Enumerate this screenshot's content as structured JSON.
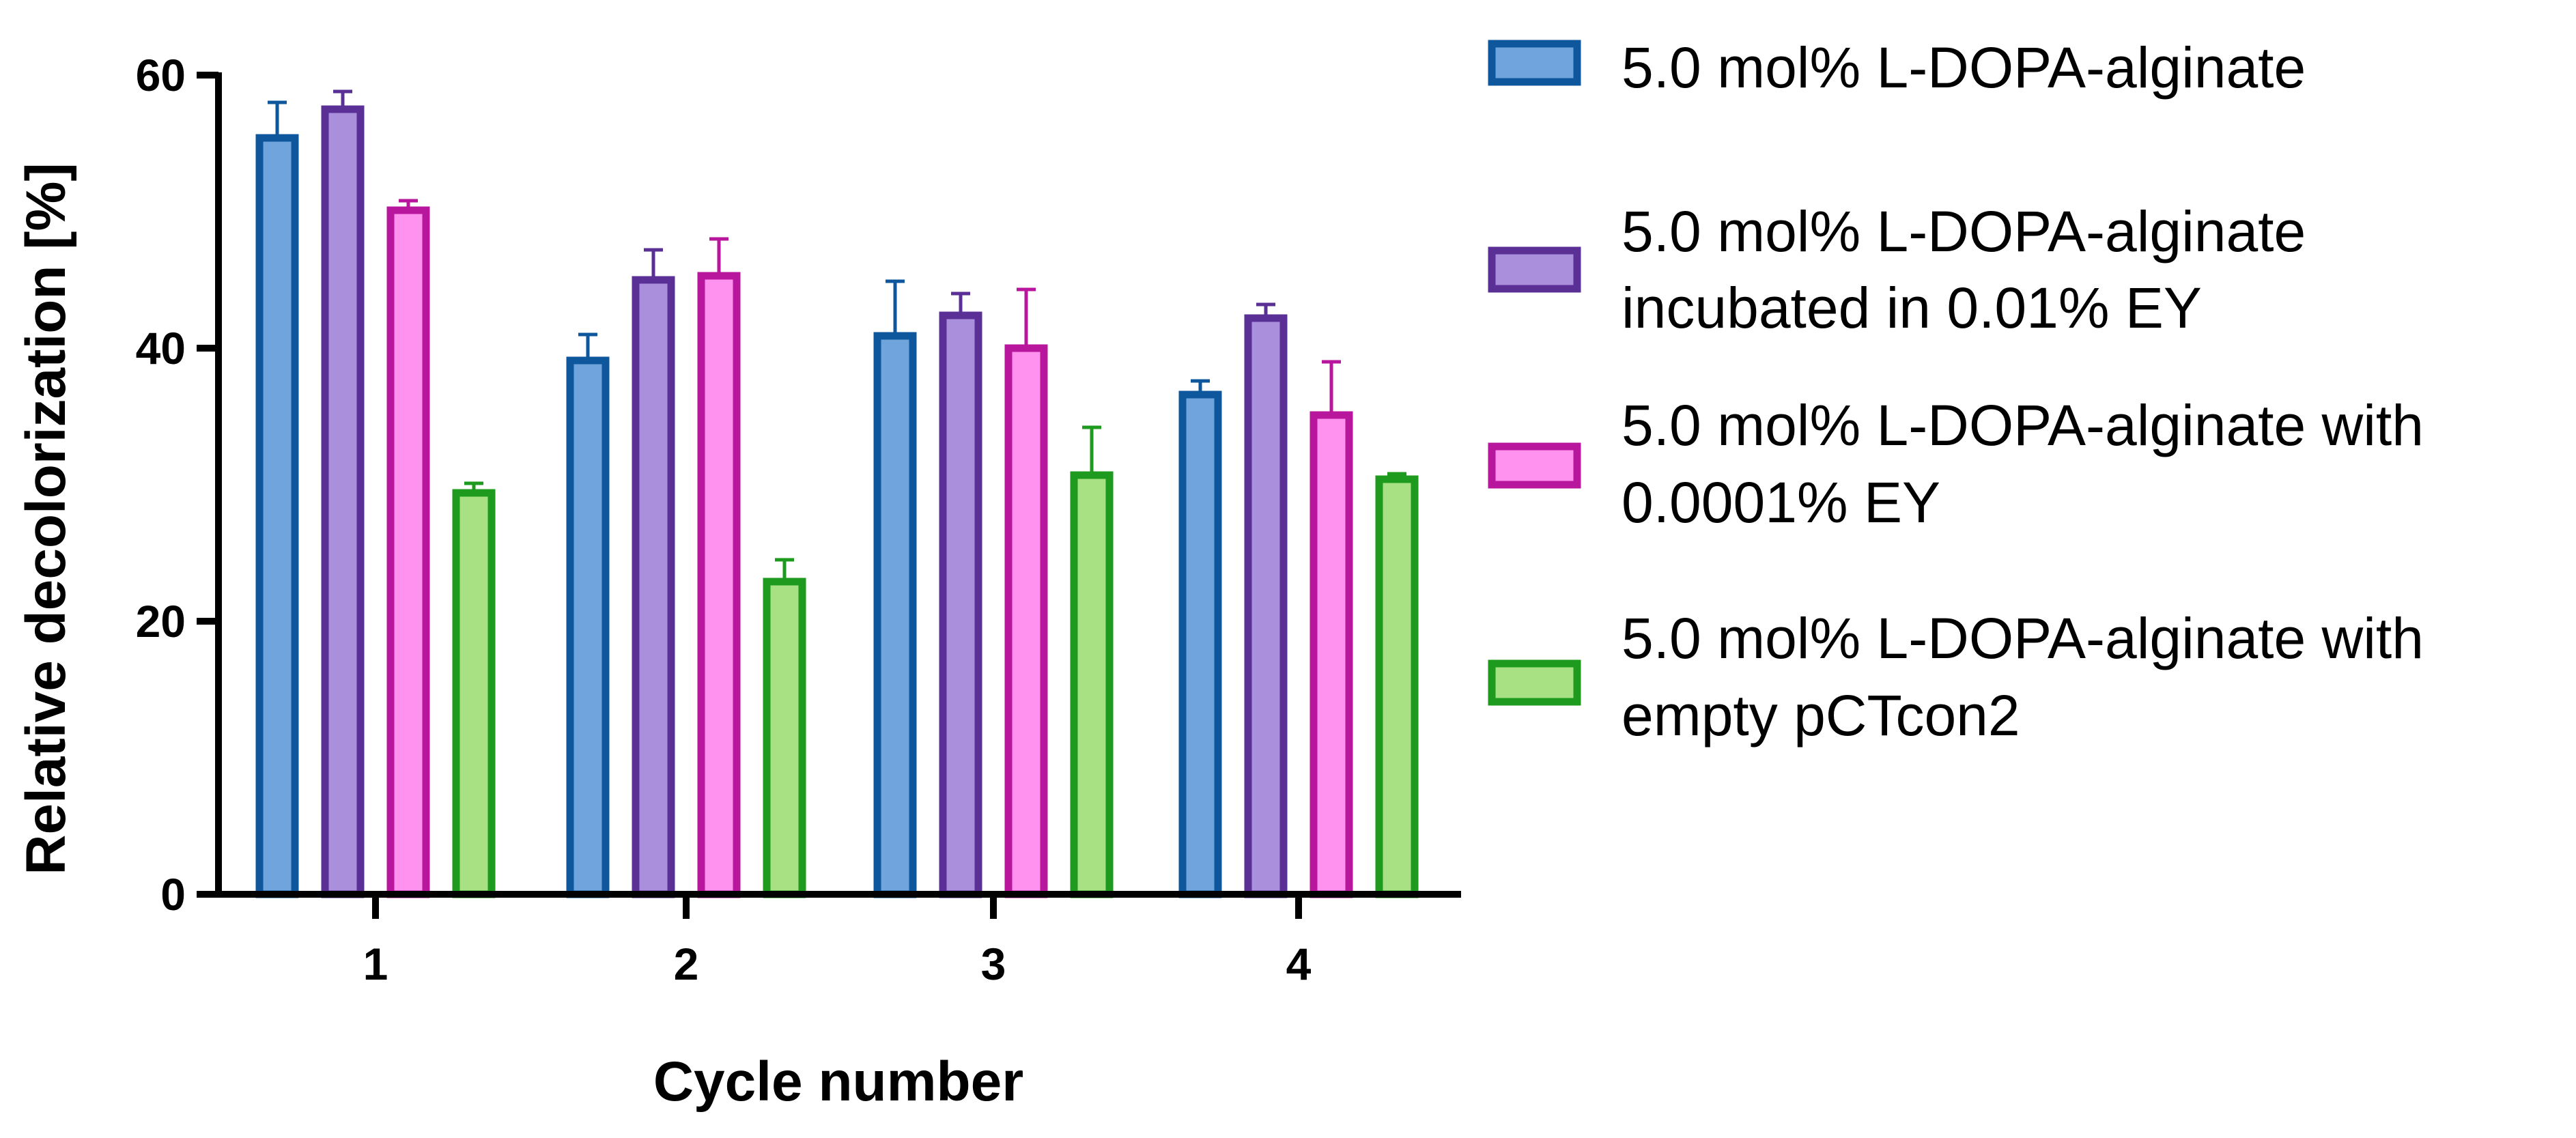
{
  "chart_data": {
    "type": "bar",
    "title": "",
    "xlabel": "Cycle number",
    "ylabel": "Relative decolorization [%]",
    "ylim": [
      0,
      60
    ],
    "yticks": [
      0,
      20,
      40,
      60
    ],
    "categories": [
      "1",
      "2",
      "3",
      "4"
    ],
    "legend_position": "right",
    "series": [
      {
        "name": "5.0 mol% L-DOPA-alginate",
        "label_lines": [
          "5.0 mol% L-DOPA-alginate"
        ],
        "fill": "#6fa4dc",
        "stroke": "#0f579d",
        "values": [
          55.4,
          39.1,
          40.9,
          36.6
        ],
        "errors": [
          2.6,
          1.9,
          4.0,
          1.0
        ]
      },
      {
        "name": "5.0 mol% L-DOPA-alginate incubated in 0.01% EY",
        "label_lines": [
          "5.0 mol% L-DOPA-alginate",
          "incubated in 0.01% EY"
        ],
        "fill": "#a98fdc",
        "stroke": "#5a2f96",
        "values": [
          57.5,
          45.0,
          42.4,
          42.2
        ],
        "errors": [
          1.3,
          2.2,
          1.6,
          1.0
        ]
      },
      {
        "name": "5.0 mol% L-DOPA-alginate with 0.0001% EY",
        "label_lines": [
          "5.0 mol% L-DOPA-alginate with",
          "0.0001% EY"
        ],
        "fill": "#ff92ef",
        "stroke": "#b9169e",
        "values": [
          50.1,
          45.3,
          40.0,
          35.1
        ],
        "errors": [
          0.7,
          2.7,
          4.3,
          3.9
        ]
      },
      {
        "name": "5.0 mol% L-DOPA-alginate with empty pCTcon2",
        "label_lines": [
          "5.0 mol% L-DOPA-alginate with",
          "empty pCTcon2"
        ],
        "fill": "#a7e183",
        "stroke": "#1e9a1e",
        "values": [
          29.4,
          22.9,
          30.7,
          30.4
        ],
        "errors": [
          0.7,
          1.6,
          3.5,
          0.4
        ]
      }
    ]
  }
}
